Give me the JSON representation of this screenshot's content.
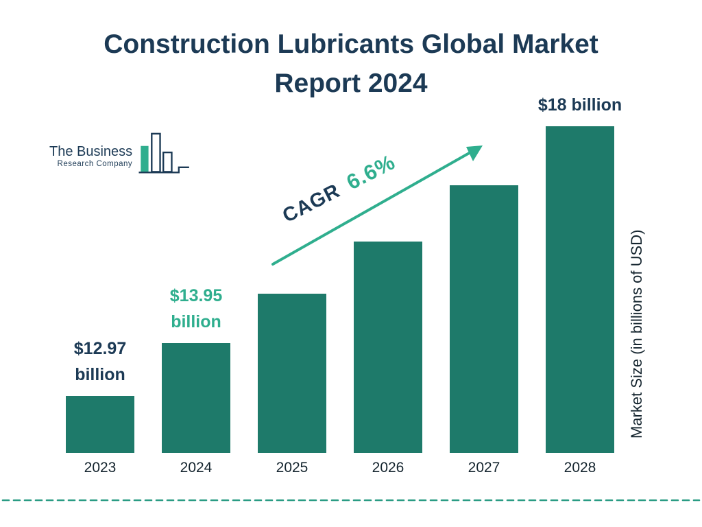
{
  "title": {
    "line1": "Construction Lubricants Global Market",
    "line2": "Report 2024"
  },
  "logo": {
    "name_line1": "The Business",
    "name_line2": "Research Company"
  },
  "chart_data": {
    "type": "bar",
    "title": "Construction Lubricants Global Market Report 2024",
    "categories": [
      "2023",
      "2024",
      "2025",
      "2026",
      "2027",
      "2028"
    ],
    "values": [
      12.97,
      13.95,
      14.87,
      15.85,
      16.9,
      18
    ],
    "unit": "billions of USD",
    "xlabel": "",
    "ylabel": "Market Size (in billions of USD)",
    "ylim": [
      11.9,
      18
    ],
    "grid": false,
    "legend": "none",
    "bar_color": "#1E7A6A",
    "value_labels": [
      {
        "category": "2023",
        "lines": [
          "$12.97",
          "billion"
        ],
        "color": "#1C3A55"
      },
      {
        "category": "2024",
        "lines": [
          "$13.95",
          "billion"
        ],
        "color": "#2FAE8E"
      },
      {
        "category": "2028",
        "lines": [
          "$18 billion"
        ],
        "color": "#1C3A55"
      }
    ],
    "cagr_annotation": {
      "label": "CAGR",
      "value": "6.6%",
      "label_color": "#1C3A55",
      "value_color": "#2FAE8E"
    }
  },
  "colors": {
    "navy": "#1C3A55",
    "teal_bar": "#1E7A6A",
    "green_accent": "#2FAE8E",
    "dash": "#2A9C84"
  }
}
